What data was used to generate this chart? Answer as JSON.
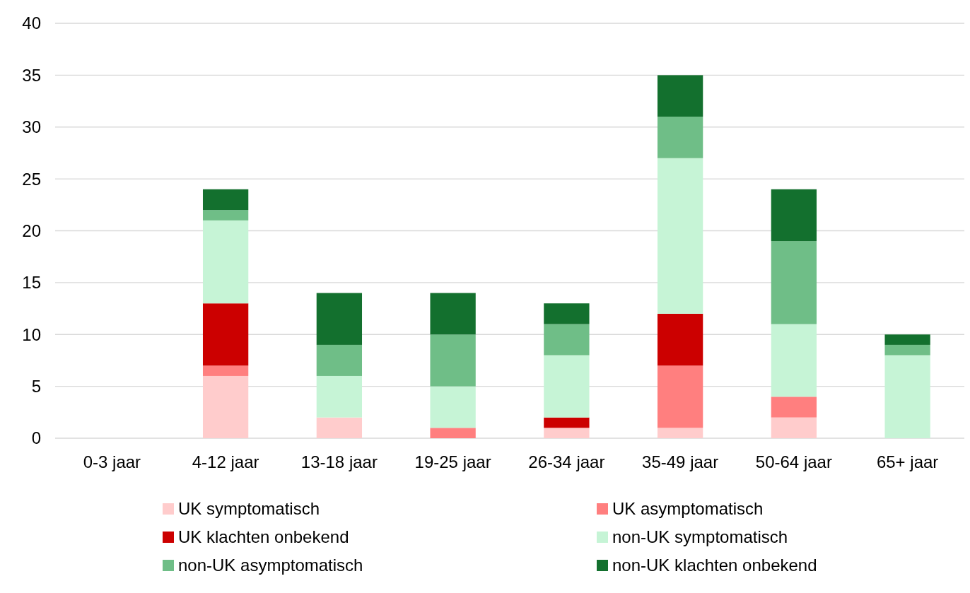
{
  "chart_data": {
    "type": "bar",
    "stacked": true,
    "categories": [
      "0-3 jaar",
      "4-12 jaar",
      "13-18 jaar",
      "19-25 jaar",
      "26-34 jaar",
      "35-49 jaar",
      "50-64 jaar",
      "65+ jaar"
    ],
    "series": [
      {
        "name": "UK symptomatisch",
        "color": "#ffcccc",
        "values": [
          0,
          6,
          2,
          0,
          1,
          1,
          2,
          0
        ]
      },
      {
        "name": "UK asymptomatisch",
        "color": "#ff7f7f",
        "values": [
          0,
          1,
          0,
          1,
          0,
          6,
          2,
          0
        ]
      },
      {
        "name": "UK klachten onbekend",
        "color": "#cc0000",
        "values": [
          0,
          6,
          0,
          0,
          1,
          5,
          0,
          0
        ]
      },
      {
        "name": "non-UK symptomatisch",
        "color": "#c6f4d6",
        "values": [
          0,
          8,
          4,
          4,
          6,
          15,
          7,
          8
        ]
      },
      {
        "name": "non-UK asymptomatisch",
        "color": "#6fbe87",
        "values": [
          0,
          1,
          3,
          5,
          3,
          4,
          8,
          1
        ]
      },
      {
        "name": "non-UK klachten onbekend",
        "color": "#13702e",
        "values": [
          0,
          2,
          5,
          4,
          2,
          4,
          5,
          1
        ]
      }
    ],
    "ylim": [
      0,
      40
    ],
    "yticks": [
      0,
      5,
      10,
      15,
      20,
      25,
      30,
      35,
      40
    ],
    "grid": "y",
    "legend": "bottom"
  }
}
